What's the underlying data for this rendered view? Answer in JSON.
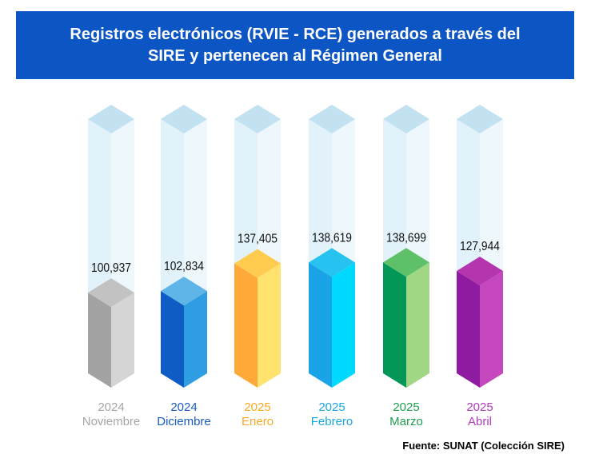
{
  "title": {
    "line1": "Registros electrónicos (RVIE - RCE) generados a través del",
    "line2": "SIRE y pertenecen al Régimen General"
  },
  "source": "Fuente: SUNAT (Colección SIRE)",
  "colors": {
    "banner": "#0b55c4",
    "ghost_front": "#e2f2fa",
    "ghost_side": "#eef8fc",
    "ghost_top": "#c2e2f2"
  },
  "chart_data": {
    "type": "bar",
    "title": "Registros electrónicos (RVIE - RCE) generados a través del SIRE y pertenecen al Régimen General",
    "xlabel": "",
    "ylabel": "",
    "ylim": [
      0,
      300000
    ],
    "grid": false,
    "legend": "none",
    "value_labels": [
      "100,937",
      "102,834",
      "137,405",
      "138,619",
      "138,699",
      "127,944"
    ],
    "values": [
      100937,
      102834,
      137405,
      138619,
      138699,
      127944
    ],
    "categories": [
      {
        "year": "2024",
        "month": "Noviembre",
        "label_color": "#a6a6a6",
        "front": "#a3a3a3",
        "side": "#d5d5d5",
        "top": "#c2c2c2"
      },
      {
        "year": "2024",
        "month": "Diciembre",
        "label_color": "#1a5cc0",
        "front": "#0f5cc4",
        "side": "#2e9de2",
        "top": "#5fb4e8"
      },
      {
        "year": "2025",
        "month": "Enero",
        "label_color": "#f7a928",
        "front": "#ffaa38",
        "side": "#ffe36e",
        "top": "#ffcc50"
      },
      {
        "year": "2025",
        "month": "Febrero",
        "label_color": "#1aa8e0",
        "front": "#1ba3e8",
        "side": "#00d9ff",
        "top": "#26c2f0"
      },
      {
        "year": "2025",
        "month": "Marzo",
        "label_color": "#1e9f50",
        "front": "#029757",
        "side": "#a1d784",
        "top": "#5fc06a"
      },
      {
        "year": "2025",
        "month": "Abril",
        "label_color": "#b13cba",
        "front": "#8f1ca0",
        "side": "#c447bd",
        "top": "#b435ae"
      }
    ]
  }
}
